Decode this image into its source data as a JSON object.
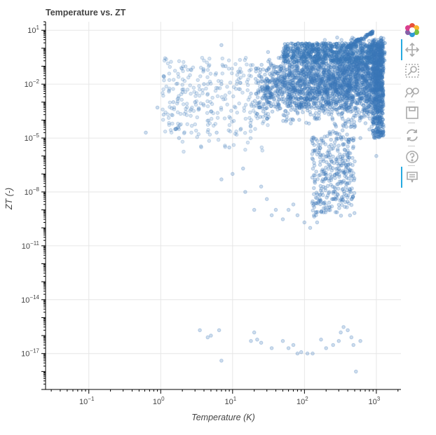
{
  "title": "Temperature vs. ZT",
  "colors": {
    "point": "#3a78b8",
    "grid": "#e6e6e6",
    "axis": "#000000",
    "toolbar_active": "#26aae1",
    "toolbar_icon": "#aaaaaa"
  },
  "toolbar": {
    "tools": [
      {
        "name": "bokeh-logo-icon",
        "label": ""
      },
      {
        "name": "pan-tool-icon",
        "label": "",
        "active": true
      },
      {
        "name": "box-zoom-tool-icon",
        "label": ""
      },
      {
        "name": "wheel-zoom-tool-icon",
        "label": ""
      },
      {
        "name": "save-tool-icon",
        "label": ""
      },
      {
        "name": "reset-tool-icon",
        "label": ""
      },
      {
        "name": "help-tool-icon",
        "label": ""
      },
      {
        "name": "hover-tool-icon",
        "label": "",
        "active": true
      }
    ]
  },
  "chart_data": {
    "type": "scatter",
    "title": "Temperature vs. ZT",
    "xlabel": "Temperature (K)",
    "ylabel": "ZT (-)",
    "x_scale": "log",
    "y_scale": "log",
    "xlim": [
      0.025,
      2200
    ],
    "ylim": [
      1e-19,
      30.0
    ],
    "x_ticks": [
      {
        "value": 0.1,
        "base": "10",
        "exp": "−1"
      },
      {
        "value": 1,
        "base": "10",
        "exp": "0"
      },
      {
        "value": 10,
        "base": "10",
        "exp": "1"
      },
      {
        "value": 100,
        "base": "10",
        "exp": "2"
      },
      {
        "value": 1000,
        "base": "10",
        "exp": "3"
      }
    ],
    "y_ticks": [
      {
        "value": 10.0,
        "base": "10",
        "exp": "1"
      },
      {
        "value": 0.01,
        "base": "10",
        "exp": "−2"
      },
      {
        "value": 1e-05,
        "base": "10",
        "exp": "−5"
      },
      {
        "value": 1e-08,
        "base": "10",
        "exp": "−8"
      },
      {
        "value": 1e-11,
        "base": "10",
        "exp": "−11"
      },
      {
        "value": 1e-14,
        "base": "10",
        "exp": "−14"
      },
      {
        "value": 1e-17,
        "base": "10",
        "exp": "−17"
      }
    ],
    "grid": true,
    "dense_region": [
      {
        "x_range": [
          20,
          1300
        ],
        "y_range": [
          1e-05,
          3
        ],
        "note": ""
      }
    ],
    "points": [
      [
        0.62,
        2e-05
      ],
      [
        0.9,
        0.0005
      ],
      [
        1.1,
        0.0002
      ],
      [
        1.5,
        0.001
      ],
      [
        2,
        0.005
      ],
      [
        1.8,
        1e-05
      ],
      [
        3,
        0.001
      ],
      [
        4,
        0.01
      ],
      [
        5,
        0.0003
      ],
      [
        6,
        2e-05
      ],
      [
        7,
        0.01
      ],
      [
        7,
        5e-08
      ],
      [
        7,
        1.5
      ],
      [
        8,
        0.1
      ],
      [
        9,
        3e-06
      ],
      [
        10,
        1e-07
      ],
      [
        12,
        0.05
      ],
      [
        14,
        2e-07
      ],
      [
        15,
        1e-08
      ],
      [
        18,
        0.003
      ],
      [
        20,
        1e-09
      ],
      [
        25,
        2e-08
      ],
      [
        30,
        4e-09
      ],
      [
        35,
        5e-10
      ],
      [
        40,
        1e-09
      ],
      [
        50,
        3e-10
      ],
      [
        60,
        1e-09
      ],
      [
        70,
        2e-09
      ],
      [
        80,
        5e-10
      ],
      [
        100,
        2e-10
      ],
      [
        120,
        1e-10
      ],
      [
        130,
        3e-09
      ],
      [
        150,
        2e-10
      ],
      [
        180,
        5e-08
      ],
      [
        200,
        1e-09
      ],
      [
        250,
        1e-08
      ],
      [
        300,
        3e-07
      ],
      [
        400,
        2e-06
      ],
      [
        500,
        5e-07
      ],
      [
        600,
        1e-05
      ],
      [
        800,
        3e-05
      ],
      [
        1000,
        1e-06
      ],
      [
        1200,
        0.1
      ],
      [
        1250,
        1
      ],
      [
        3.5,
        2e-16
      ],
      [
        4.5,
        8e-17
      ],
      [
        5,
        1e-16
      ],
      [
        6.5,
        2e-16
      ],
      [
        7,
        4e-18
      ],
      [
        18,
        5e-17
      ],
      [
        20,
        1.5e-16
      ],
      [
        22,
        6e-17
      ],
      [
        25,
        4e-17
      ],
      [
        35,
        2e-17
      ],
      [
        50,
        5e-17
      ],
      [
        60,
        2e-17
      ],
      [
        70,
        3e-17
      ],
      [
        80,
        1e-17
      ],
      [
        90,
        1.2e-17
      ],
      [
        110,
        1e-17
      ],
      [
        130,
        1e-17
      ],
      [
        170,
        6e-17
      ],
      [
        200,
        2e-17
      ],
      [
        250,
        3e-17
      ],
      [
        300,
        5e-17
      ],
      [
        320,
        1.5e-16
      ],
      [
        350,
        3e-16
      ],
      [
        400,
        2e-16
      ],
      [
        450,
        8e-17
      ],
      [
        480,
        3e-17
      ],
      [
        520,
        1e-18
      ],
      [
        600,
        5e-17
      ]
    ]
  }
}
